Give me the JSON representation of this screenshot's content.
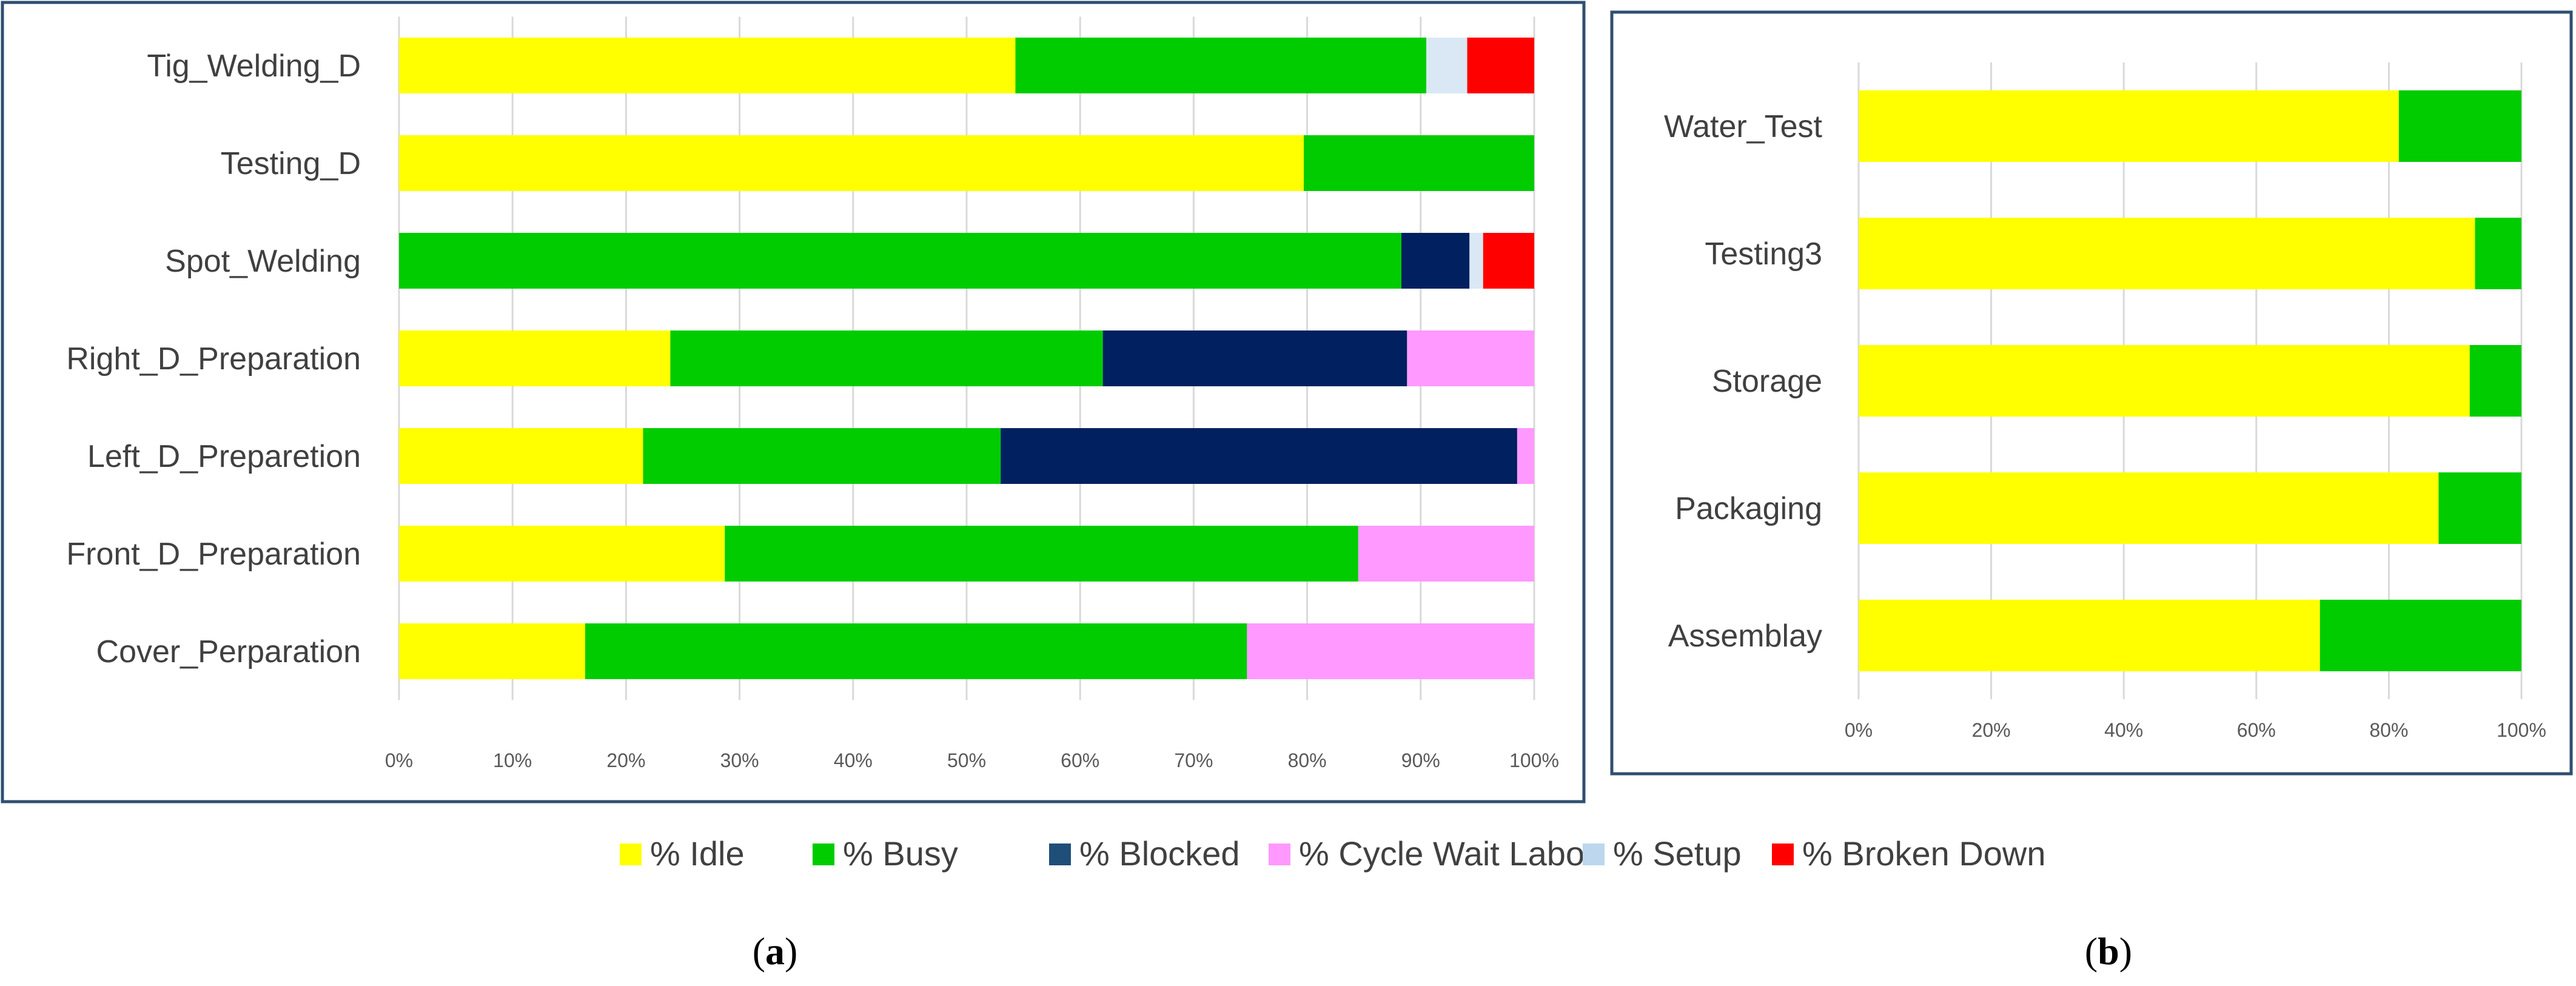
{
  "chart_data": [
    {
      "id": "a",
      "type": "bar",
      "orientation": "horizontal",
      "stacked": "percent",
      "caption": "a",
      "categories": [
        "Tig_Welding_D",
        "Testing_D",
        "Spot_Welding",
        "Right_D_Preparation",
        "Left_D_Preparetion",
        "Front_D_Preparation",
        "Cover_Perparation"
      ],
      "series": [
        {
          "name": "% Idle",
          "color": "#FFFF00",
          "values": [
            54.3,
            79.7,
            0,
            23.9,
            21.5,
            28.7,
            16.4
          ]
        },
        {
          "name": "% Busy",
          "color": "#00CC00",
          "values": [
            36.2,
            20.3,
            88.3,
            38.1,
            31.5,
            55.8,
            58.3
          ]
        },
        {
          "name": "% Blocked",
          "color": "#002060",
          "values": [
            0,
            0,
            6.0,
            26.8,
            45.5,
            0,
            0
          ]
        },
        {
          "name": "% Cycle Wait Labor",
          "color": "#FF99FF",
          "values": [
            0,
            0,
            0,
            11.2,
            1.5,
            15.5,
            25.3
          ]
        },
        {
          "name": "% Setup",
          "color": "#DAE8F5",
          "values": [
            3.6,
            0,
            1.2,
            0,
            0,
            0,
            0
          ]
        },
        {
          "name": "% Broken Down",
          "color": "#FF0000",
          "values": [
            5.9,
            0,
            4.5,
            0,
            0,
            0,
            0
          ]
        }
      ],
      "xlim": [
        0,
        100
      ],
      "xticks": [
        "0%",
        "10%",
        "20%",
        "30%",
        "40%",
        "50%",
        "60%",
        "70%",
        "80%",
        "90%",
        "100%"
      ],
      "grid": true
    },
    {
      "id": "b",
      "type": "bar",
      "orientation": "horizontal",
      "stacked": "percent",
      "caption": "b",
      "categories": [
        "Water_Test",
        "Testing3",
        "Storage",
        "Packaging",
        "Assemblay"
      ],
      "series": [
        {
          "name": "% Idle",
          "color": "#FFFF00",
          "values": [
            81.5,
            93.0,
            92.2,
            87.5,
            69.6
          ]
        },
        {
          "name": "% Busy",
          "color": "#00CC00",
          "values": [
            18.5,
            7.0,
            7.8,
            12.5,
            30.4
          ]
        }
      ],
      "xlim": [
        0,
        100
      ],
      "xticks": [
        "0%",
        "20%",
        "40%",
        "60%",
        "80%",
        "100%"
      ],
      "grid": true
    }
  ],
  "legend": {
    "position": "bottom",
    "items": [
      {
        "label": "% Idle",
        "color": "#FFFF00"
      },
      {
        "label": "% Busy",
        "color": "#00CC00"
      },
      {
        "label": "% Blocked",
        "color": "#1F4E79"
      },
      {
        "label": "% Cycle Wait Labor",
        "color": "#FF99FF"
      },
      {
        "label": "% Setup",
        "color": "#BDD7EE"
      },
      {
        "label": "% Broken Down",
        "color": "#FF0000"
      }
    ]
  },
  "captions": {
    "a": {
      "open": "(",
      "letter": "a",
      "close": ")"
    },
    "b": {
      "open": "(",
      "letter": "b",
      "close": ")"
    }
  }
}
